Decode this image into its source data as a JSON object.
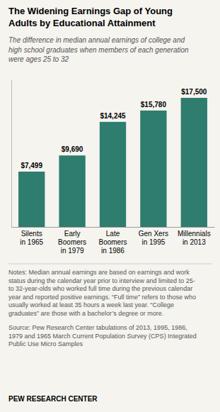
{
  "chart_data": {
    "type": "bar",
    "title": "The Widening Earnings Gap of Young\nAdults by Educational Attainment",
    "subtitle": "The difference in median annual earnings of college and\nhigh school graduates when members of each generation\nwere ages 25 to 32",
    "categories": [
      "Silents\nin 1965",
      "Early\nBoomers\nin 1979",
      "Late\nBoomers\nin 1986",
      "Gen Xers\nin 1995",
      "Millennials\nin 2013"
    ],
    "values": [
      7499,
      9690,
      14245,
      15780,
      17500
    ],
    "value_labels": [
      "$7,499",
      "$9,690",
      "$14,245",
      "$15,780",
      "$17,500"
    ],
    "data_labels": true,
    "color": "#2e7d6e",
    "ylim": [
      0,
      20000
    ],
    "tick_labels": "x",
    "notes": "Notes: Median annual earnings are based on earnings and work\nstatus during the calendar year prior to interview and limited to 25-\nto 32-year-olds who worked full time during the previous calendar\nyear and reported positive earnings. “Full time” refers to those who\nusually worked at least 35 hours a week last year. “College\ngraduates” are those with a bachelor’s degree or more.",
    "source": "Source: Pew Research Center tabulations of 2013, 1995, 1986,\n1979 and 1965 March Current Population Survey (CPS) Integrated\nPublic Use Micro Samples",
    "branding": "PEW RESEARCH CENTER"
  }
}
